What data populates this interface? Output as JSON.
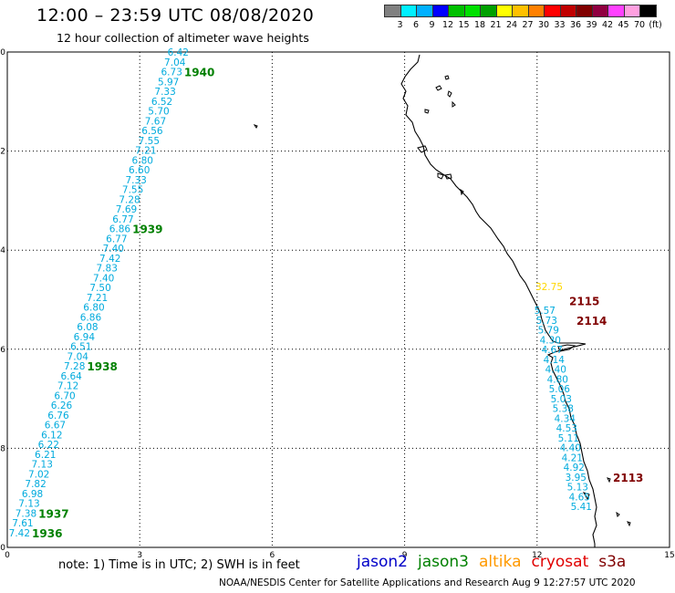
{
  "header": {
    "title": "12:00 – 23:59 UTC 08/08/2020",
    "subtitle": "12 hour collection of altimeter wave heights"
  },
  "legend": {
    "colors": [
      "#808080",
      "#00f0ff",
      "#00b0ff",
      "#0000ff",
      "#00c000",
      "#00e000",
      "#00a000",
      "#ffff00",
      "#ffc000",
      "#ff8000",
      "#ff0000",
      "#c00000",
      "#800000",
      "#900040",
      "#ff40ff",
      "#ffa0e0",
      "#000000"
    ],
    "labels": [
      "3",
      "6",
      "9",
      "12",
      "15",
      "18",
      "21",
      "24",
      "27",
      "30",
      "33",
      "36",
      "39",
      "42",
      "45",
      "70",
      "(ft)"
    ]
  },
  "axes": {
    "x_ticks": [
      "0",
      "3",
      "6",
      "9",
      "12",
      "15"
    ],
    "y_ticks": [
      "0",
      "-2",
      "-4",
      "-6",
      "-8",
      "-10"
    ]
  },
  "colors": {
    "jason2": "#0000c8",
    "jason3": "#008000",
    "altika": "#ff9900",
    "cryosat": "#e00000",
    "s3a": "#800000",
    "swh_label": "#00aadd"
  },
  "tracks": [
    {
      "satellite": "jason3",
      "swh_values": [
        "6.42",
        "7.04",
        "6.73",
        "5.97",
        "7.33",
        "6.52",
        "5.70",
        "7.67",
        "6.56",
        "7.55",
        "7.21",
        "6.80",
        "6.60",
        "7.33",
        "7.55",
        "7.28",
        "7.69",
        "6.77",
        "6.86",
        "6.77",
        "7.40",
        "7.42",
        "7.83",
        "7.40",
        "7.50",
        "7.21",
        "6.80",
        "6.86",
        "6.08",
        "6.94",
        "6.51",
        "7.04",
        "7.28",
        "6.64",
        "7.12",
        "6.70",
        "6.26",
        "6.76",
        "6.67",
        "6.12",
        "6.22",
        "6.21",
        "7.13",
        "7.02",
        "7.82",
        "6.98",
        "7.13",
        "7.38",
        "7.61",
        "7.42"
      ],
      "time_labels": [
        {
          "text": "1940",
          "row": 2
        },
        {
          "text": "1939",
          "row": 18
        },
        {
          "text": "1938",
          "row": 32
        },
        {
          "text": "1937",
          "row": 47
        },
        {
          "text": "1936",
          "row": 49
        }
      ]
    },
    {
      "satellite": "s3a",
      "swh_values": [
        "5.57",
        "5.73",
        "5.79",
        "4.30",
        "4.67",
        "4.14",
        "4.40",
        "4.80",
        "5.06",
        "5.03",
        "5.38",
        "4.34",
        "4.53",
        "5.11",
        "4.40",
        "4.21",
        "4.92",
        "3.95",
        "5.13",
        "4.65",
        "5.41"
      ],
      "time_labels": [
        {
          "text": "2115",
          "row": -1
        },
        {
          "text": "2114",
          "row": 1
        },
        {
          "text": "2113",
          "row": 17
        }
      ],
      "outlier": {
        "text": "32.75",
        "color": "#ffd700"
      }
    }
  ],
  "note": "note: 1) Time is in UTC; 2) SWH is in feet",
  "satellites": [
    {
      "name": "jason2",
      "color": "#0000c8"
    },
    {
      "name": "jason3",
      "color": "#008000"
    },
    {
      "name": "altika",
      "color": "#ff9900"
    },
    {
      "name": "cryosat",
      "color": "#e00000"
    },
    {
      "name": "s3a",
      "color": "#800000"
    }
  ],
  "credit": "NOAA/NESDIS Center for Satellite Applications and Research    Aug  9 12:27:57 UTC 2020"
}
